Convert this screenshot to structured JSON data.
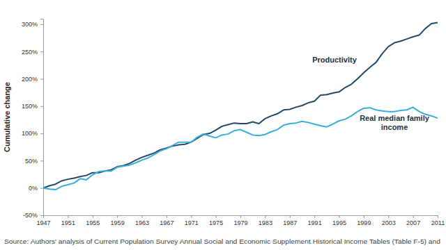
{
  "chart_data": {
    "type": "line",
    "y_label": "Cumulative change",
    "source": "Source: Authors' analysis of Current Population Survey Annual Social and Economic Supplement Historical Income Tables (Table F-5) and",
    "x": [
      1947,
      1948,
      1949,
      1950,
      1951,
      1952,
      1953,
      1954,
      1955,
      1956,
      1957,
      1958,
      1959,
      1960,
      1961,
      1962,
      1963,
      1964,
      1965,
      1966,
      1967,
      1968,
      1969,
      1970,
      1971,
      1972,
      1973,
      1974,
      1975,
      1976,
      1977,
      1978,
      1979,
      1980,
      1981,
      1982,
      1983,
      1984,
      1985,
      1986,
      1987,
      1988,
      1989,
      1990,
      1991,
      1992,
      1993,
      1994,
      1995,
      1996,
      1997,
      1998,
      1999,
      2000,
      2001,
      2002,
      2003,
      2004,
      2005,
      2006,
      2007,
      2008,
      2009,
      2010,
      2011
    ],
    "series": [
      {
        "name": "Productivity",
        "color": "#24476b",
        "values": [
          0,
          4,
          7,
          13,
          16,
          18,
          21,
          23,
          28,
          28,
          31,
          33,
          39,
          41,
          45,
          51,
          56,
          60,
          64,
          70,
          73,
          77,
          79,
          80,
          84,
          91,
          98,
          100,
          106,
          113,
          116,
          119,
          118,
          118,
          121,
          118,
          127,
          132,
          136,
          143,
          144,
          148,
          151,
          156,
          159,
          170,
          171,
          174,
          176,
          184,
          190,
          200,
          211,
          221,
          230,
          246,
          259,
          266,
          269,
          273,
          277,
          280,
          292,
          301,
          303
        ]
      },
      {
        "name": "Real median family income",
        "color": "#3aaed8",
        "values": [
          0,
          -2,
          -3,
          3,
          6,
          9,
          17,
          15,
          24,
          30,
          31,
          31,
          38,
          40,
          42,
          46,
          51,
          55,
          61,
          68,
          72,
          78,
          84,
          84,
          84,
          93,
          99,
          95,
          92,
          97,
          99,
          105,
          107,
          102,
          97,
          96,
          98,
          103,
          107,
          115,
          118,
          119,
          122,
          120,
          117,
          114,
          112,
          117,
          123,
          126,
          132,
          140,
          146,
          147,
          143,
          141,
          140,
          140,
          142,
          143,
          148,
          140,
          135,
          132,
          128
        ]
      }
    ],
    "xlim": [
      1947,
      2011
    ],
    "xticks": [
      1947,
      1951,
      1955,
      1959,
      1963,
      1967,
      1971,
      1975,
      1979,
      1983,
      1987,
      1991,
      1995,
      1999,
      2003,
      2007,
      2011
    ],
    "ylim": [
      -50,
      310
    ],
    "yticks": [
      {
        "value": -50,
        "label": "-50%"
      },
      {
        "value": 0,
        "label": "0%"
      },
      {
        "value": 50,
        "label": "50%"
      },
      {
        "value": 100,
        "label": "100%"
      },
      {
        "value": 150,
        "label": "150%"
      },
      {
        "value": 200,
        "label": "200%"
      },
      {
        "value": 250,
        "label": "250%"
      },
      {
        "value": 300,
        "label": "300%"
      }
    ],
    "grid": false
  }
}
